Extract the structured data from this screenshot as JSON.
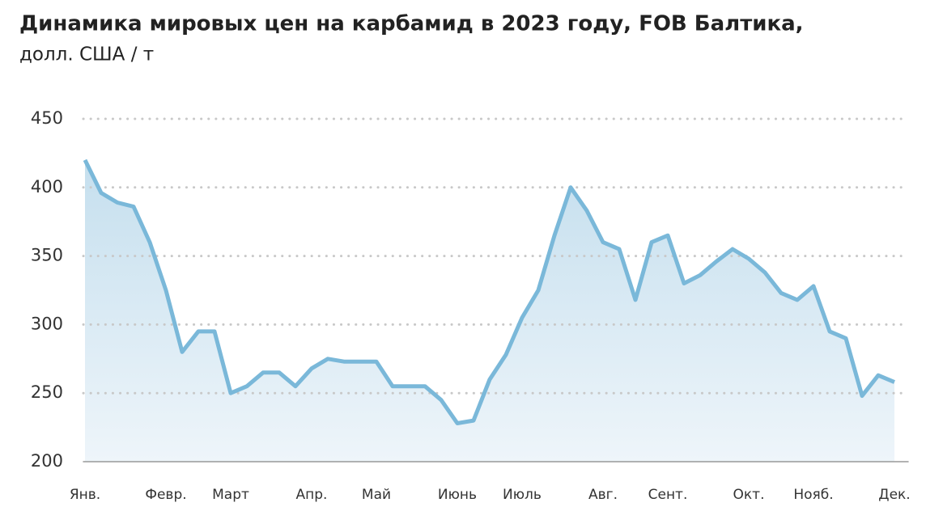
{
  "chart_data": {
    "type": "line",
    "title": "Динамика мировых цен на карбамид в 2023 году, FOB Балтика,",
    "subtitle": "долл. США / т",
    "categories": [
      "Янв.",
      null,
      null,
      null,
      null,
      "Февр.",
      null,
      null,
      null,
      "Март",
      null,
      null,
      null,
      null,
      "Апр.",
      null,
      null,
      null,
      "Май",
      null,
      null,
      null,
      null,
      "Июнь",
      null,
      null,
      null,
      "Июль",
      null,
      null,
      null,
      null,
      "Авг.",
      null,
      null,
      null,
      "Сент.",
      null,
      null,
      null,
      null,
      "Окт.",
      null,
      null,
      null,
      "Нояб.",
      null,
      null,
      null,
      null,
      "Дек."
    ],
    "values": [
      420,
      396,
      389,
      386,
      360,
      325,
      280,
      295,
      295,
      250,
      255,
      265,
      265,
      255,
      268,
      275,
      273,
      273,
      273,
      255,
      255,
      255,
      245,
      228,
      230,
      260,
      278,
      305,
      325,
      365,
      400,
      383,
      360,
      355,
      318,
      360,
      365,
      330,
      336,
      346,
      355,
      348,
      338,
      323,
      318,
      328,
      295,
      290,
      248,
      263,
      258
    ],
    "color": "#7ab8d9",
    "ylim": [
      200,
      450
    ],
    "yticks": [
      200,
      250,
      300,
      350,
      400,
      450
    ],
    "grid": true
  }
}
